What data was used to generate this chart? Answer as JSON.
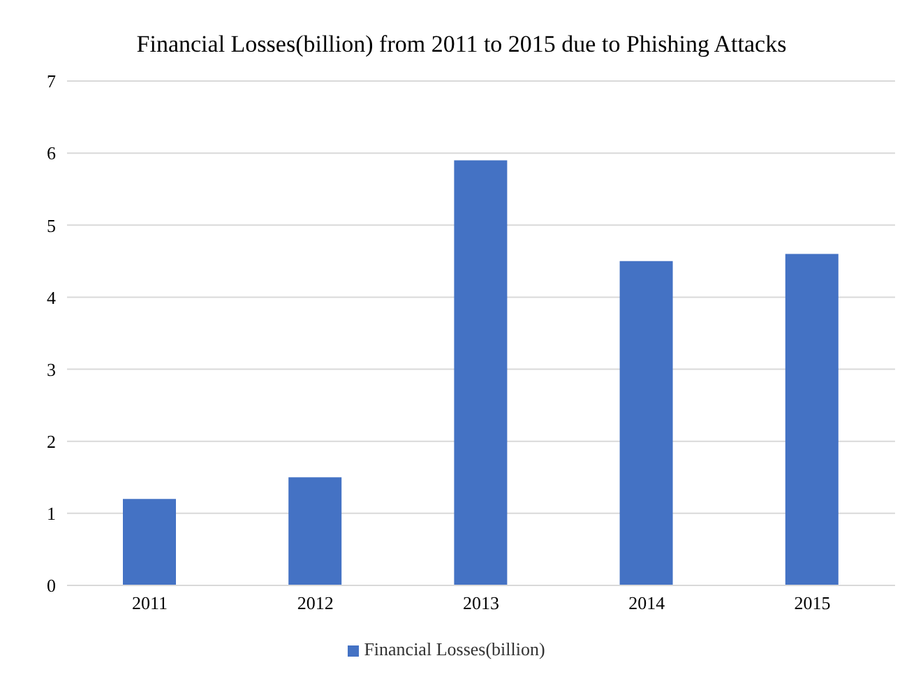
{
  "chart_data": {
    "type": "bar",
    "title": "Financial Losses(billion) from 2011 to 2015 due to Phishing Attacks",
    "categories": [
      "2011",
      "2012",
      "2013",
      "2014",
      "2015"
    ],
    "series": [
      {
        "name": "Financial Losses(billion)",
        "color": "#4472c4",
        "values": [
          1.2,
          1.5,
          5.9,
          4.5,
          4.6
        ]
      }
    ],
    "ylim": [
      0,
      7
    ],
    "yticks": [
      0,
      1,
      2,
      3,
      4,
      5,
      6,
      7
    ],
    "grid": "y",
    "legend": "bottom"
  }
}
